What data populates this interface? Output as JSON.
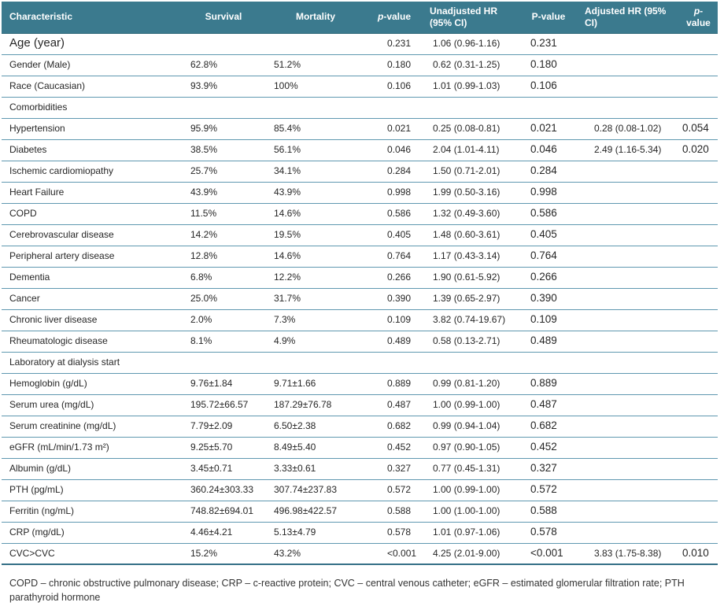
{
  "colors": {
    "header_bg": "#3B7A8E",
    "header_text": "#FFFFFF",
    "row_border": "#5F98B0",
    "thick_border": "#346F86",
    "text": "#262626"
  },
  "table": {
    "columns": [
      {
        "label": "Characteristic",
        "align": "left",
        "p_italic": false
      },
      {
        "label": "Survival",
        "align": "center",
        "p_italic": false
      },
      {
        "label": "Mortality",
        "align": "center",
        "p_italic": false
      },
      {
        "label": "p-value",
        "align": "center",
        "p_italic": true
      },
      {
        "label": "Unadjusted HR (95% CI)",
        "align": "left",
        "p_italic": false
      },
      {
        "label": "P-value",
        "align": "center",
        "p_italic": false
      },
      {
        "label": "Adjusted HR (95% CI)",
        "align": "left",
        "p_italic": false
      },
      {
        "label": "p-value",
        "align": "center",
        "p_italic": true
      }
    ],
    "rows": [
      {
        "large": true,
        "cells": [
          "Age (year)",
          "",
          "",
          "0.231",
          "1.06 (0.96-1.16)",
          "0.231",
          "",
          ""
        ]
      },
      {
        "cells": [
          "Gender (Male)",
          "62.8%",
          "51.2%",
          "0.180",
          "0.62 (0.31-1.25)",
          "0.180",
          "",
          ""
        ]
      },
      {
        "cells": [
          "Race (Caucasian)",
          "93.9%",
          "100%",
          "0.106",
          "1.01 (0.99-1.03)",
          "0.106",
          "",
          ""
        ]
      },
      {
        "section": true,
        "label": "Comorbidities"
      },
      {
        "cells": [
          "Hypertension",
          "95.9%",
          "85.4%",
          "0.021",
          "0.25 (0.08-0.81)",
          "0.021",
          "0.28 (0.08-1.02)",
          "0.054"
        ]
      },
      {
        "cells": [
          "Diabetes",
          "38.5%",
          "56.1%",
          "0.046",
          "2.04 (1.01-4.11)",
          "0.046",
          "2.49 (1.16-5.34)",
          "0.020"
        ]
      },
      {
        "cells": [
          "Ischemic cardiomiopathy",
          "25.7%",
          "34.1%",
          "0.284",
          "1.50 (0.71-2.01)",
          "0.284",
          "",
          ""
        ]
      },
      {
        "cells": [
          "Heart Failure",
          "43.9%",
          "43.9%",
          "0.998",
          "1.99 (0.50-3.16)",
          "0.998",
          "",
          ""
        ]
      },
      {
        "cells": [
          "COPD",
          "11.5%",
          "14.6%",
          "0.586",
          "1.32 (0.49-3.60)",
          "0.586",
          "",
          ""
        ]
      },
      {
        "cells": [
          "Cerebrovascular disease",
          "14.2%",
          "19.5%",
          "0.405",
          "1.48 (0.60-3.61)",
          "0.405",
          "",
          ""
        ]
      },
      {
        "cells": [
          "Peripheral artery disease",
          "12.8%",
          "14.6%",
          "0.764",
          "1.17 (0.43-3.14)",
          "0.764",
          "",
          ""
        ]
      },
      {
        "cells": [
          "Dementia",
          "6.8%",
          "12.2%",
          "0.266",
          "1.90 (0.61-5.92)",
          "0.266",
          "",
          ""
        ]
      },
      {
        "cells": [
          "Cancer",
          "25.0%",
          "31.7%",
          "0.390",
          "1.39 (0.65-2.97)",
          "0.390",
          "",
          ""
        ]
      },
      {
        "cells": [
          "Chronic liver disease",
          "2.0%",
          "7.3%",
          "0.109",
          "3.82 (0.74-19.67)",
          "0.109",
          "",
          ""
        ]
      },
      {
        "cells": [
          "Rheumatologic disease",
          "8.1%",
          "4.9%",
          "0.489",
          "0.58 (0.13-2.71)",
          "0.489",
          "",
          ""
        ]
      },
      {
        "section": true,
        "label": "Laboratory at dialysis start"
      },
      {
        "cells": [
          "Hemoglobin (g/dL)",
          "9.76±1.84",
          "9.71±1.66",
          "0.889",
          "0.99 (0.81-1.20)",
          "0.889",
          "",
          ""
        ]
      },
      {
        "cells": [
          "Serum urea (mg/dL)",
          "195.72±66.57",
          "187.29±76.78",
          "0.487",
          "1.00 (0.99-1.00)",
          "0.487",
          "",
          ""
        ]
      },
      {
        "cells": [
          "Serum creatinine (mg/dL)",
          "7.79±2.09",
          "6.50±2.38",
          "0.682",
          "0.99 (0.94-1.04)",
          "0.682",
          "",
          ""
        ]
      },
      {
        "cells": [
          "eGFR (mL/min/1.73 m²)",
          "9.25±5.70",
          "8.49±5.40",
          "0.452",
          "0.97 (0.90-1.05)",
          "0.452",
          "",
          ""
        ]
      },
      {
        "cells": [
          "Albumin (g/dL)",
          "3.45±0.71",
          "3.33±0.61",
          "0.327",
          "0.77 (0.45-1.31)",
          "0.327",
          "",
          ""
        ]
      },
      {
        "cells": [
          "PTH (pg/mL)",
          "360.24±303.33",
          "307.74±237.83",
          "0.572",
          "1.00 (0.99-1.00)",
          "0.572",
          "",
          ""
        ]
      },
      {
        "cells": [
          "Ferritin (ng/mL)",
          "748.82±694.01",
          "496.98±422.57",
          "0.588",
          "1.00 (1.00-1.00)",
          "0.588",
          "",
          ""
        ]
      },
      {
        "cells": [
          "CRP (mg/dL)",
          "4.46±4.21",
          "5.13±4.79",
          "0.578",
          "1.01 (0.97-1.06)",
          "0.578",
          "",
          ""
        ]
      },
      {
        "last": true,
        "cells": [
          "CVC>CVC",
          "15.2%",
          "43.2%",
          "<0.001",
          "4.25 (2.01-9.00)",
          "<0.001",
          "3.83 (1.75-8.38)",
          "0.010"
        ]
      }
    ]
  },
  "footnote": "COPD – chronic obstructive pulmonary disease; CRP – c-reactive protein; CVC – central venous catheter; eGFR – estimated glomerular filtration rate; PTH parathyroid hormone"
}
